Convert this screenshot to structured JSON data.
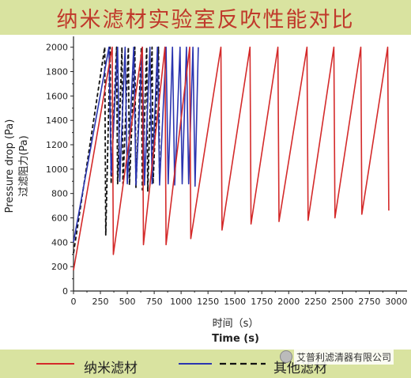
{
  "title": "纳米滤材实验室反吹性能对比",
  "watermark": "艾普利滤清器有限公司",
  "colors": {
    "title_bar": "#d9e3a0",
    "title_text": "#c0392b",
    "red": "#d42a2a",
    "blue": "#2b35b0",
    "black": "#111111"
  },
  "legend": {
    "item1": "纳米滤材",
    "item2": "其他滤材"
  },
  "chart_data": {
    "type": "line",
    "xlabel_cn": "时间（s）",
    "xlabel_en": "Time (s)",
    "ylabel_en": "Pressure drop (Pa)",
    "ylabel_cn": "过滤阻力(Pa)",
    "xlim": [
      0,
      3100
    ],
    "ylim": [
      0,
      2050
    ],
    "x_ticks": [
      0,
      250,
      500,
      750,
      1000,
      1250,
      1500,
      1750,
      2000,
      2250,
      2500,
      2750,
      3000
    ],
    "y_ticks": [
      0,
      200,
      400,
      600,
      800,
      1000,
      1200,
      1400,
      1600,
      1800,
      2000
    ],
    "grid": false,
    "legend_position": "bottom",
    "series": [
      {
        "color": "red",
        "dash": false,
        "points": [
          [
            0,
            170
          ],
          [
            360,
            2000
          ],
          [
            370,
            300
          ],
          [
            640,
            2000
          ],
          [
            650,
            380
          ],
          [
            850,
            2000
          ],
          [
            860,
            380
          ],
          [
            1080,
            2000
          ],
          [
            1090,
            430
          ],
          [
            1370,
            2000
          ],
          [
            1380,
            500
          ],
          [
            1640,
            2000
          ],
          [
            1650,
            550
          ],
          [
            1900,
            2000
          ],
          [
            1910,
            570
          ],
          [
            2170,
            2000
          ],
          [
            2180,
            580
          ],
          [
            2420,
            2000
          ],
          [
            2430,
            600
          ],
          [
            2670,
            2000
          ],
          [
            2680,
            630
          ],
          [
            2920,
            2000
          ],
          [
            2930,
            660
          ]
        ]
      },
      {
        "color": "blue",
        "dash": false,
        "points": [
          [
            0,
            400
          ],
          [
            330,
            2000
          ],
          [
            350,
            950
          ],
          [
            410,
            2000
          ],
          [
            430,
            900
          ],
          [
            480,
            2000
          ],
          [
            500,
            880
          ],
          [
            560,
            2000
          ],
          [
            580,
            870
          ],
          [
            640,
            2000
          ],
          [
            660,
            870
          ],
          [
            710,
            2000
          ],
          [
            730,
            880
          ],
          [
            780,
            2000
          ],
          [
            800,
            870
          ],
          [
            860,
            2000
          ],
          [
            880,
            880
          ],
          [
            920,
            2000
          ],
          [
            940,
            870
          ],
          [
            990,
            2000
          ],
          [
            1010,
            880
          ],
          [
            1050,
            2000
          ],
          [
            1070,
            880
          ],
          [
            1110,
            2000
          ],
          [
            1130,
            860
          ],
          [
            1160,
            2000
          ]
        ]
      },
      {
        "color": "black",
        "dash": true,
        "points": [
          [
            0,
            310
          ],
          [
            290,
            2000
          ],
          [
            300,
            460
          ],
          [
            340,
            2000
          ],
          [
            350,
            880
          ],
          [
            400,
            2000
          ],
          [
            410,
            880
          ],
          [
            450,
            2000
          ],
          [
            460,
            880
          ],
          [
            510,
            2000
          ],
          [
            520,
            870
          ],
          [
            570,
            2000
          ],
          [
            580,
            850
          ],
          [
            630,
            2000
          ],
          [
            640,
            830
          ],
          [
            680,
            2000
          ],
          [
            690,
            820
          ],
          [
            730,
            2000
          ],
          [
            740,
            880
          ],
          [
            790,
            2000
          ],
          [
            800,
            900
          ]
        ]
      }
    ]
  }
}
